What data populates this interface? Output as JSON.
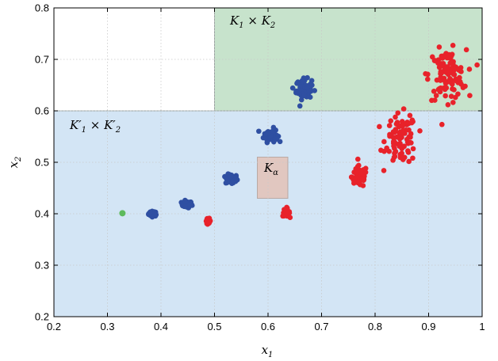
{
  "chart_data": {
    "type": "scatter",
    "title": "",
    "xlabel": "x",
    "xlabel_sub": "1",
    "ylabel": "x",
    "ylabel_sub": "2",
    "xlim": [
      0.2,
      1.0
    ],
    "ylim": [
      0.2,
      0.8
    ],
    "xticks": [
      "0.2",
      "0.3",
      "0.4",
      "0.5",
      "0.6",
      "0.7",
      "0.8",
      "0.9",
      "1"
    ],
    "yticks": [
      "0.2",
      "0.3",
      "0.4",
      "0.5",
      "0.6",
      "0.7",
      "0.8"
    ],
    "grid": true,
    "regions": [
      {
        "label": "K1 × K2",
        "x0": 0.5,
        "x1": 1.0,
        "y0": 0.6,
        "y1": 0.8,
        "color": "#c7e3cc"
      },
      {
        "label": "K1′ × K2′",
        "x0": 0.2,
        "x1": 1.0,
        "y0": 0.2,
        "y1": 0.6,
        "color": "#d3e5f5"
      },
      {
        "label": "Kα",
        "x0": 0.58,
        "x1": 0.637,
        "y0": 0.43,
        "y1": 0.51,
        "color": "#e1c7c0"
      }
    ],
    "series": [
      {
        "color": "#2f4fa2",
        "clusters": [
          {
            "x": 0.385,
            "y": 0.4,
            "sx": 0.005,
            "sy": 0.003,
            "n": 40
          },
          {
            "x": 0.448,
            "y": 0.418,
            "sx": 0.006,
            "sy": 0.004,
            "n": 45
          },
          {
            "x": 0.532,
            "y": 0.467,
            "sx": 0.007,
            "sy": 0.006,
            "n": 55
          },
          {
            "x": 0.605,
            "y": 0.553,
            "sx": 0.008,
            "sy": 0.008,
            "n": 60
          },
          {
            "x": 0.667,
            "y": 0.642,
            "sx": 0.009,
            "sy": 0.012,
            "n": 80
          }
        ]
      },
      {
        "color": "#e8222a",
        "clusters": [
          {
            "x": 0.488,
            "y": 0.386,
            "sx": 0.003,
            "sy": 0.003,
            "n": 20
          },
          {
            "x": 0.634,
            "y": 0.403,
            "sx": 0.004,
            "sy": 0.005,
            "n": 30
          },
          {
            "x": 0.771,
            "y": 0.472,
            "sx": 0.009,
            "sy": 0.013,
            "n": 70
          },
          {
            "x": 0.849,
            "y": 0.545,
            "sx": 0.018,
            "sy": 0.03,
            "n": 90
          },
          {
            "x": 0.935,
            "y": 0.67,
            "sx": 0.022,
            "sy": 0.03,
            "n": 110
          }
        ]
      },
      {
        "color": "#5dba5d",
        "points": [
          {
            "x": 0.328,
            "y": 0.401
          }
        ]
      }
    ]
  }
}
